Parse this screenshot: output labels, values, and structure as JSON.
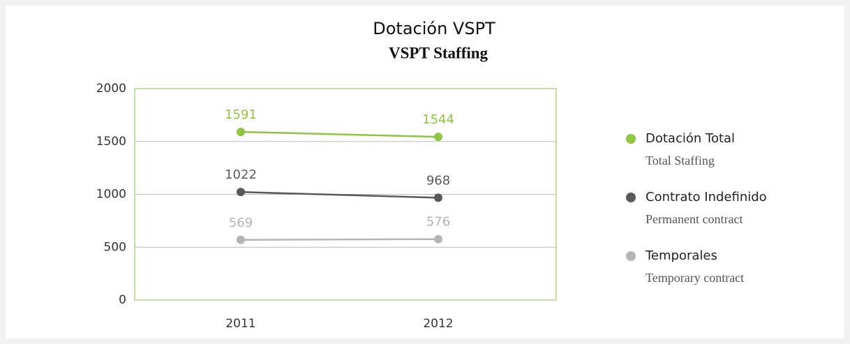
{
  "chart_data": {
    "type": "line",
    "title": "Dotación VSPT",
    "subtitle": "VSPT Staffing",
    "categories": [
      "2011",
      "2012"
    ],
    "series": [
      {
        "name": "Dotación Total",
        "name_en": "Total Staffing",
        "color": "#8dc63f",
        "values": [
          1591,
          1544
        ]
      },
      {
        "name": "Contrato Indefinido",
        "name_en": "Permanent contract",
        "color": "#58595b",
        "values": [
          1022,
          968
        ]
      },
      {
        "name": "Temporales",
        "name_en": "Temporary contract",
        "color": "#b5b5b7",
        "values": [
          569,
          576
        ]
      }
    ],
    "ylim": [
      0,
      2000
    ],
    "yticks": [
      0,
      500,
      1000,
      1500,
      2000
    ],
    "grid": true,
    "legend": "right"
  }
}
